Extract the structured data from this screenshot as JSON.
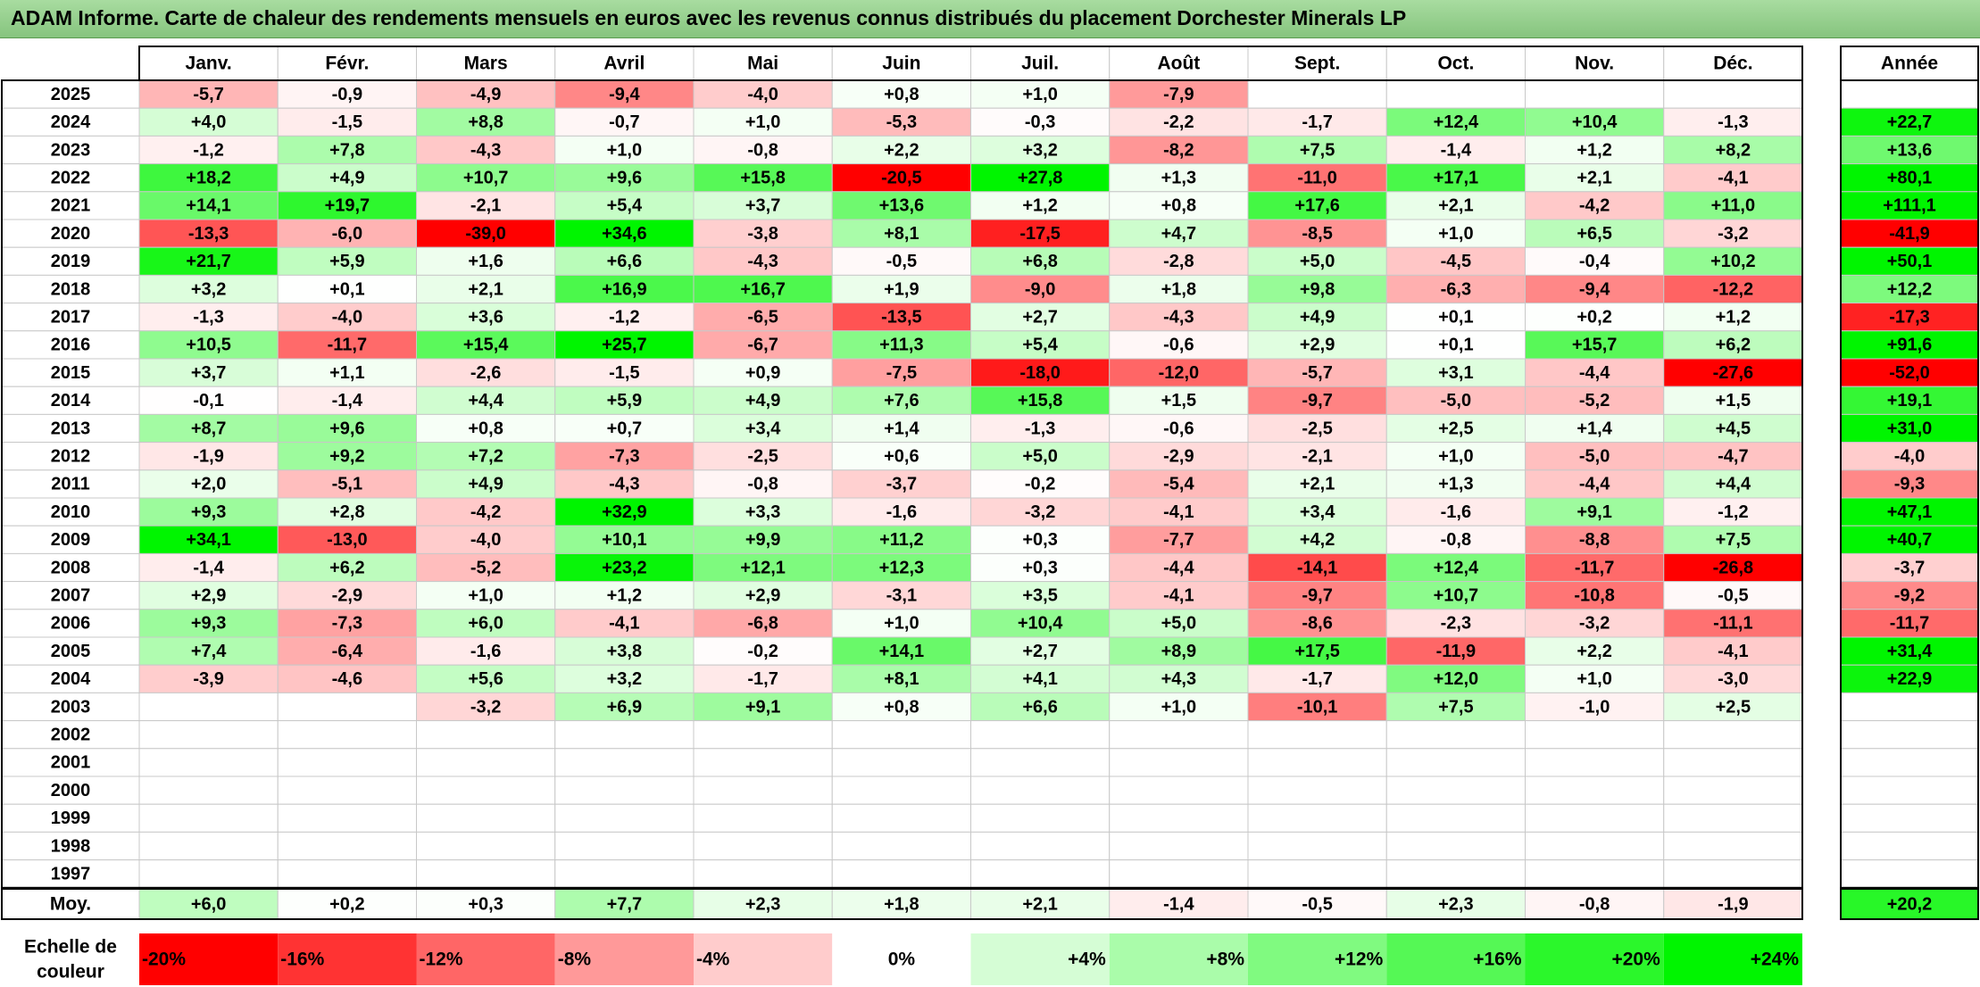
{
  "title": "ADAM Informe. Carte de chaleur des rendements mensuels en euros avec les revenus connus distribués du placement Dorchester Minerals LP",
  "chart_data": {
    "type": "heatmap",
    "months": [
      "Janv.",
      "Févr.",
      "Mars",
      "Avril",
      "Mai",
      "Juin",
      "Juil.",
      "Août",
      "Sept.",
      "Oct.",
      "Nov.",
      "Déc."
    ],
    "year_header": "Année",
    "rows": [
      {
        "year": "2025",
        "values": [
          "-5,7",
          "-0,9",
          "-4,9",
          "-9,4",
          "-4,0",
          "+0,8",
          "+1,0",
          "-7,9",
          "",
          "",
          "",
          ""
        ],
        "annual": ""
      },
      {
        "year": "2024",
        "values": [
          "+4,0",
          "-1,5",
          "+8,8",
          "-0,7",
          "+1,0",
          "-5,3",
          "-0,3",
          "-2,2",
          "-1,7",
          "+12,4",
          "+10,4",
          "-1,3"
        ],
        "annual": "+22,7"
      },
      {
        "year": "2023",
        "values": [
          "-1,2",
          "+7,8",
          "-4,3",
          "+1,0",
          "-0,8",
          "+2,2",
          "+3,2",
          "-8,2",
          "+7,5",
          "-1,4",
          "+1,2",
          "+8,2"
        ],
        "annual": "+13,6"
      },
      {
        "year": "2022",
        "values": [
          "+18,2",
          "+4,9",
          "+10,7",
          "+9,6",
          "+15,8",
          "-20,5",
          "+27,8",
          "+1,3",
          "-11,0",
          "+17,1",
          "+2,1",
          "-4,1"
        ],
        "annual": "+80,1"
      },
      {
        "year": "2021",
        "values": [
          "+14,1",
          "+19,7",
          "-2,1",
          "+5,4",
          "+3,7",
          "+13,6",
          "+1,2",
          "+0,8",
          "+17,6",
          "+2,1",
          "-4,2",
          "+11,0"
        ],
        "annual": "+111,1"
      },
      {
        "year": "2020",
        "values": [
          "-13,3",
          "-6,0",
          "-39,0",
          "+34,6",
          "-3,8",
          "+8,1",
          "-17,5",
          "+4,7",
          "-8,5",
          "+1,0",
          "+6,5",
          "-3,2"
        ],
        "annual": "-41,9"
      },
      {
        "year": "2019",
        "values": [
          "+21,7",
          "+5,9",
          "+1,6",
          "+6,6",
          "-4,3",
          "-0,5",
          "+6,8",
          "-2,8",
          "+5,0",
          "-4,5",
          "-0,4",
          "+10,2"
        ],
        "annual": "+50,1"
      },
      {
        "year": "2018",
        "values": [
          "+3,2",
          "+0,1",
          "+2,1",
          "+16,9",
          "+16,7",
          "+1,9",
          "-9,0",
          "+1,8",
          "+9,8",
          "-6,3",
          "-9,4",
          "-12,2"
        ],
        "annual": "+12,2"
      },
      {
        "year": "2017",
        "values": [
          "-1,3",
          "-4,0",
          "+3,6",
          "-1,2",
          "-6,5",
          "-13,5",
          "+2,7",
          "-4,3",
          "+4,9",
          "+0,1",
          "+0,2",
          "+1,2"
        ],
        "annual": "-17,3"
      },
      {
        "year": "2016",
        "values": [
          "+10,5",
          "-11,7",
          "+15,4",
          "+25,7",
          "-6,7",
          "+11,3",
          "+5,4",
          "-0,6",
          "+2,9",
          "+0,1",
          "+15,7",
          "+6,2"
        ],
        "annual": "+91,6"
      },
      {
        "year": "2015",
        "values": [
          "+3,7",
          "+1,1",
          "-2,6",
          "-1,5",
          "+0,9",
          "-7,5",
          "-18,0",
          "-12,0",
          "-5,7",
          "+3,1",
          "-4,4",
          "-27,6"
        ],
        "annual": "-52,0"
      },
      {
        "year": "2014",
        "values": [
          "-0,1",
          "-1,4",
          "+4,4",
          "+5,9",
          "+4,9",
          "+7,6",
          "+15,8",
          "+1,5",
          "-9,7",
          "-5,0",
          "-5,2",
          "+1,5"
        ],
        "annual": "+19,1"
      },
      {
        "year": "2013",
        "values": [
          "+8,7",
          "+9,6",
          "+0,8",
          "+0,7",
          "+3,4",
          "+1,4",
          "-1,3",
          "-0,6",
          "-2,5",
          "+2,5",
          "+1,4",
          "+4,5"
        ],
        "annual": "+31,0"
      },
      {
        "year": "2012",
        "values": [
          "-1,9",
          "+9,2",
          "+7,2",
          "-7,3",
          "-2,5",
          "+0,6",
          "+5,0",
          "-2,9",
          "-2,1",
          "+1,0",
          "-5,0",
          "-4,7"
        ],
        "annual": "-4,0"
      },
      {
        "year": "2011",
        "values": [
          "+2,0",
          "-5,1",
          "+4,9",
          "-4,3",
          "-0,8",
          "-3,7",
          "-0,2",
          "-5,4",
          "+2,1",
          "+1,3",
          "-4,4",
          "+4,4"
        ],
        "annual": "-9,3"
      },
      {
        "year": "2010",
        "values": [
          "+9,3",
          "+2,8",
          "-4,2",
          "+32,9",
          "+3,3",
          "-1,6",
          "-3,2",
          "-4,1",
          "+3,4",
          "-1,6",
          "+9,1",
          "-1,2"
        ],
        "annual": "+47,1"
      },
      {
        "year": "2009",
        "values": [
          "+34,1",
          "-13,0",
          "-4,0",
          "+10,1",
          "+9,9",
          "+11,2",
          "+0,3",
          "-7,7",
          "+4,2",
          "-0,8",
          "-8,8",
          "+7,5"
        ],
        "annual": "+40,7"
      },
      {
        "year": "2008",
        "values": [
          "-1,4",
          "+6,2",
          "-5,2",
          "+23,2",
          "+12,1",
          "+12,3",
          "+0,3",
          "-4,4",
          "-14,1",
          "+12,4",
          "-11,7",
          "-26,8"
        ],
        "annual": "-3,7"
      },
      {
        "year": "2007",
        "values": [
          "+2,9",
          "-2,9",
          "+1,0",
          "+1,2",
          "+2,9",
          "-3,1",
          "+3,5",
          "-4,1",
          "-9,7",
          "+10,7",
          "-10,8",
          "-0,5"
        ],
        "annual": "-9,2"
      },
      {
        "year": "2006",
        "values": [
          "+9,3",
          "-7,3",
          "+6,0",
          "-4,1",
          "-6,8",
          "+1,0",
          "+10,4",
          "+5,0",
          "-8,6",
          "-2,3",
          "-3,2",
          "-11,1"
        ],
        "annual": "-11,7"
      },
      {
        "year": "2005",
        "values": [
          "+7,4",
          "-6,4",
          "-1,6",
          "+3,8",
          "-0,2",
          "+14,1",
          "+2,7",
          "+8,9",
          "+17,5",
          "-11,9",
          "+2,2",
          "-4,1"
        ],
        "annual": "+31,4"
      },
      {
        "year": "2004",
        "values": [
          "-3,9",
          "-4,6",
          "+5,6",
          "+3,2",
          "-1,7",
          "+8,1",
          "+4,1",
          "+4,3",
          "-1,7",
          "+12,0",
          "+1,0",
          "-3,0"
        ],
        "annual": "+22,9"
      },
      {
        "year": "2003",
        "values": [
          "",
          "",
          "-3,2",
          "+6,9",
          "+9,1",
          "+0,8",
          "+6,6",
          "+1,0",
          "-10,1",
          "+7,5",
          "-1,0",
          "+2,5"
        ],
        "annual": ""
      },
      {
        "year": "2002",
        "values": [
          "",
          "",
          "",
          "",
          "",
          "",
          "",
          "",
          "",
          "",
          "",
          ""
        ],
        "annual": ""
      },
      {
        "year": "2001",
        "values": [
          "",
          "",
          "",
          "",
          "",
          "",
          "",
          "",
          "",
          "",
          "",
          ""
        ],
        "annual": ""
      },
      {
        "year": "2000",
        "values": [
          "",
          "",
          "",
          "",
          "",
          "",
          "",
          "",
          "",
          "",
          "",
          ""
        ],
        "annual": ""
      },
      {
        "year": "1999",
        "values": [
          "",
          "",
          "",
          "",
          "",
          "",
          "",
          "",
          "",
          "",
          "",
          ""
        ],
        "annual": ""
      },
      {
        "year": "1998",
        "values": [
          "",
          "",
          "",
          "",
          "",
          "",
          "",
          "",
          "",
          "",
          "",
          ""
        ],
        "annual": ""
      },
      {
        "year": "1997",
        "values": [
          "",
          "",
          "",
          "",
          "",
          "",
          "",
          "",
          "",
          "",
          "",
          ""
        ],
        "annual": ""
      }
    ],
    "average": {
      "label": "Moy.",
      "values": [
        "+6,0",
        "+0,2",
        "+0,3",
        "+7,7",
        "+2,3",
        "+1,8",
        "+2,1",
        "-1,4",
        "-0,5",
        "+2,3",
        "-0,8",
        "-1,9"
      ],
      "annual": "+20,2"
    },
    "color_scale": {
      "label_line1": "Echelle de",
      "label_line2": "couleur",
      "steps": [
        {
          "label": "-20%",
          "value": -20,
          "color": "#ff0000"
        },
        {
          "label": "-16%",
          "value": -16,
          "color": "#ff3333"
        },
        {
          "label": "-12%",
          "value": -12,
          "color": "#ff6666"
        },
        {
          "label": "-8%",
          "value": -8,
          "color": "#ff9999"
        },
        {
          "label": "-4%",
          "value": -4,
          "color": "#ffcccc"
        },
        {
          "label": "0%",
          "value": 0,
          "color": "#ffffff"
        },
        {
          "label": "+4%",
          "value": 4,
          "color": "#d5fdd5"
        },
        {
          "label": "+8%",
          "value": 8,
          "color": "#aafcaa"
        },
        {
          "label": "+12%",
          "value": 12,
          "color": "#80fa80"
        },
        {
          "label": "+16%",
          "value": 16,
          "color": "#55f855"
        },
        {
          "label": "+20%",
          "value": 20,
          "color": "#2bf72b"
        },
        {
          "label": "+24%",
          "value": 24,
          "color": "#00f500"
        }
      ]
    }
  }
}
